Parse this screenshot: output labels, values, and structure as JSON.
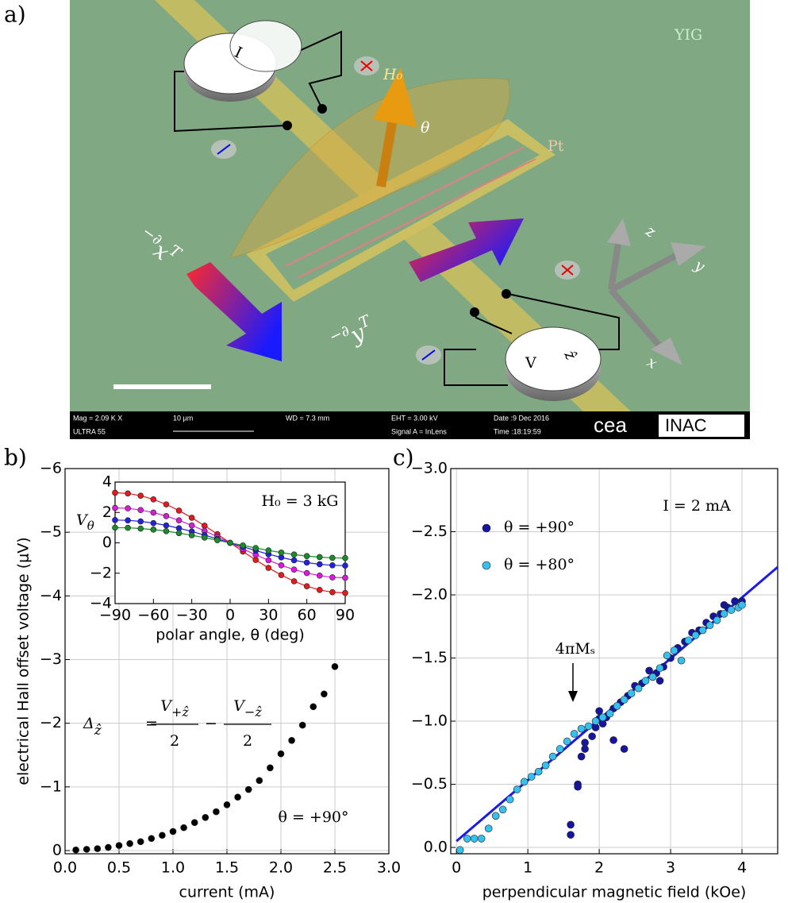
{
  "panel_a": {
    "label": "a)",
    "yig": "YIG",
    "h0": "H₀",
    "theta": "θ",
    "pt": "Pt",
    "current": "I",
    "voltage": "V",
    "voltage_axis": "ẑ",
    "grad_x": {
      "main": "−∂",
      "sub": "x",
      "end": "T"
    },
    "grad_y": {
      "main": "−∂",
      "sub": "y",
      "end": "T"
    },
    "axis_x": "x",
    "axis_y": "y",
    "axis_z": "z",
    "sem": {
      "mag": "Mag =  2.09 K X",
      "tool": "ULTRA 55",
      "scale": "10 µm",
      "wd": "WD =  7.3 mm",
      "eht": "EHT = 3.00 kV",
      "signal": "Signal A = InLens",
      "date": "Date :9 Dec 2016",
      "time": "Time :18:19:59",
      "logo1": "cea",
      "logo2": "INAC"
    }
  },
  "chart_data": [
    {
      "type": "scatter",
      "label": "b)",
      "xlabel": "current (mA)",
      "ylabel": "electrical Hall offset voltage (μV)",
      "color": "#000000",
      "x": [
        0.1,
        0.2,
        0.3,
        0.4,
        0.5,
        0.6,
        0.7,
        0.8,
        0.9,
        1.0,
        1.1,
        1.2,
        1.3,
        1.4,
        1.5,
        1.6,
        1.7,
        1.8,
        1.9,
        2.0,
        2.1,
        2.2,
        2.3,
        2.4,
        2.5
      ],
      "values": [
        -0.01,
        -0.02,
        -0.03,
        -0.05,
        -0.08,
        -0.11,
        -0.14,
        -0.19,
        -0.24,
        -0.3,
        -0.36,
        -0.44,
        -0.52,
        -0.61,
        -0.72,
        -0.84,
        -0.96,
        -1.1,
        -1.3,
        -1.52,
        -1.73,
        -1.97,
        -2.26,
        -2.46,
        -2.89
      ],
      "xlim": [
        0,
        3
      ],
      "ylim": [
        0.05,
        -6
      ],
      "grid": true,
      "xticks": [
        {
          "value": 0,
          "label": "0.0"
        },
        {
          "value": 0.5,
          "label": "0.5"
        },
        {
          "value": 1,
          "label": "1.0"
        },
        {
          "value": 1.5,
          "label": "1.5"
        },
        {
          "value": 2,
          "label": "2.0"
        },
        {
          "value": 2.5,
          "label": "2.5"
        },
        {
          "value": 3,
          "label": "3.0"
        }
      ],
      "yticks": [
        {
          "value": -6,
          "label": "−6"
        },
        {
          "value": -5,
          "label": "−5"
        },
        {
          "value": -4,
          "label": "−4"
        },
        {
          "value": -3,
          "label": "−3"
        },
        {
          "value": -2,
          "label": "−2"
        },
        {
          "value": -1,
          "label": "−1"
        },
        0
      ],
      "annotations": [
        "θ = +90°"
      ],
      "formula": {
        "lhs": "Δ",
        "lhs_sub": "ẑ",
        "eq": "=",
        "num1": "V",
        "num1_sub": "+ẑ",
        "den1": "2",
        "minus": "−",
        "num2": "V",
        "num2_sub": "−ẑ",
        "den2": "2"
      }
    },
    {
      "type": "line",
      "xlabel": "polar angle, θ (deg)",
      "ylabel": "V",
      "ylabel_sub": "θ",
      "x": [
        -90,
        -80,
        -70,
        -60,
        -50,
        -40,
        -30,
        -20,
        -10,
        0,
        10,
        20,
        30,
        40,
        50,
        60,
        70,
        80,
        90
      ],
      "series": [
        {
          "color": "#e41a1c",
          "values": [
            3.3,
            3.25,
            3.1,
            2.86,
            2.53,
            2.12,
            1.65,
            1.13,
            0.57,
            0,
            -0.57,
            -1.13,
            -1.65,
            -2.12,
            -2.53,
            -2.86,
            -3.1,
            -3.25,
            -3.3
          ]
        },
        {
          "color": "#d81bd8",
          "values": [
            2.3,
            2.27,
            2.16,
            1.99,
            1.76,
            1.48,
            1.15,
            0.79,
            0.4,
            0,
            -0.4,
            -0.79,
            -1.15,
            -1.48,
            -1.76,
            -1.99,
            -2.16,
            -2.27,
            -2.3
          ]
        },
        {
          "color": "#2222dd",
          "values": [
            1.5,
            1.48,
            1.41,
            1.3,
            1.15,
            0.96,
            0.75,
            0.51,
            0.26,
            0,
            -0.26,
            -0.51,
            -0.75,
            -0.96,
            -1.15,
            -1.3,
            -1.41,
            -1.48,
            -1.5
          ]
        },
        {
          "color": "#1a8a2a",
          "values": [
            1.0,
            0.99,
            0.94,
            0.87,
            0.77,
            0.64,
            0.5,
            0.34,
            0.17,
            0,
            -0.17,
            -0.34,
            -0.5,
            -0.64,
            -0.77,
            -0.87,
            -0.94,
            -0.99,
            -1.0
          ]
        }
      ],
      "xlim": [
        -90,
        90
      ],
      "ylim": [
        -4,
        4
      ],
      "grid": false,
      "xticks": [
        {
          "value": -90,
          "label": "−90"
        },
        {
          "value": -60,
          "label": "−60"
        },
        {
          "value": -30,
          "label": "−30"
        },
        0,
        30,
        60,
        90
      ],
      "yticks": [
        4,
        2,
        0,
        {
          "value": -2,
          "label": "−2"
        },
        {
          "value": -4,
          "label": "−4"
        }
      ],
      "annotations": [
        "H₀ = 3 kG"
      ]
    },
    {
      "type": "scatter",
      "label": "c)",
      "xlabel": "perpendicular magnetic field (kOe)",
      "legend": "upper left",
      "series": [
        {
          "name": "θ = +90°",
          "color": "#1515a0",
          "x": [
            1.6,
            1.6,
            1.7,
            1.7,
            1.75,
            1.8,
            1.8,
            1.9,
            1.95,
            2.0,
            2.0,
            2.05,
            2.1,
            2.2,
            2.2,
            2.3,
            2.35,
            2.4,
            2.5,
            2.6,
            2.7,
            2.75,
            2.8,
            2.85,
            2.9,
            3.0,
            3.1,
            3.2,
            3.3,
            3.4,
            3.5,
            3.6,
            3.7,
            3.75,
            3.8,
            3.9,
            4.0
          ],
          "values": [
            -0.1,
            -0.18,
            -0.5,
            -0.48,
            -0.72,
            -0.78,
            -0.83,
            -0.88,
            -0.95,
            -1.02,
            -1.08,
            -0.98,
            -1.03,
            -1.1,
            -0.85,
            -1.15,
            -0.78,
            -1.2,
            -1.28,
            -1.3,
            -1.4,
            -1.35,
            -1.38,
            -1.32,
            -1.43,
            -1.5,
            -1.58,
            -1.63,
            -1.7,
            -1.72,
            -1.78,
            -1.83,
            -1.85,
            -1.92,
            -1.9,
            -1.95,
            -1.95
          ]
        },
        {
          "name": "θ = +80°",
          "color": "#35c0ee",
          "x": [
            0.05,
            0.15,
            0.25,
            0.35,
            0.45,
            0.55,
            0.65,
            0.75,
            0.85,
            0.95,
            1.05,
            1.15,
            1.25,
            1.35,
            1.45,
            1.55,
            1.65,
            1.75,
            1.85,
            1.95,
            2.05,
            2.15,
            2.25,
            2.35,
            2.45,
            2.55,
            2.65,
            2.75,
            2.85,
            2.95,
            3.05,
            3.15,
            3.25,
            3.35,
            3.45,
            3.55,
            3.65,
            3.75,
            3.85,
            3.95,
            4.0
          ],
          "values": [
            0.02,
            -0.07,
            -0.07,
            -0.07,
            -0.15,
            -0.25,
            -0.3,
            -0.38,
            -0.46,
            -0.52,
            -0.56,
            -0.6,
            -0.65,
            -0.72,
            -0.78,
            -0.84,
            -0.9,
            -0.94,
            -0.96,
            -1.0,
            -1.03,
            -1.06,
            -1.12,
            -1.17,
            -1.22,
            -1.26,
            -1.32,
            -1.35,
            -1.42,
            -1.52,
            -1.56,
            -1.48,
            -1.64,
            -1.68,
            -1.72,
            -1.76,
            -1.8,
            -1.85,
            -1.88,
            -1.9,
            -1.92
          ]
        }
      ],
      "fit": {
        "color": "#1a1aee",
        "x": [
          0,
          4.5
        ],
        "values": [
          -0.05,
          -2.22
        ]
      },
      "xlim": [
        -0.08,
        4.5
      ],
      "ylim": [
        0.05,
        -3
      ],
      "grid": true,
      "xticks": [
        0,
        1,
        2,
        3,
        4
      ],
      "yticks": [
        {
          "value": -3,
          "label": "−3.0"
        },
        {
          "value": -2.5,
          "label": "−2.5"
        },
        {
          "value": -2,
          "label": "−2.0"
        },
        {
          "value": -1.5,
          "label": "−1.5"
        },
        {
          "value": -1,
          "label": "−1.0"
        },
        {
          "value": -0.5,
          "label": "−0.5"
        },
        {
          "value": 0,
          "label": "0.0"
        }
      ],
      "annotations": [
        "I = 2 mA",
        "4πMₛ"
      ]
    }
  ]
}
